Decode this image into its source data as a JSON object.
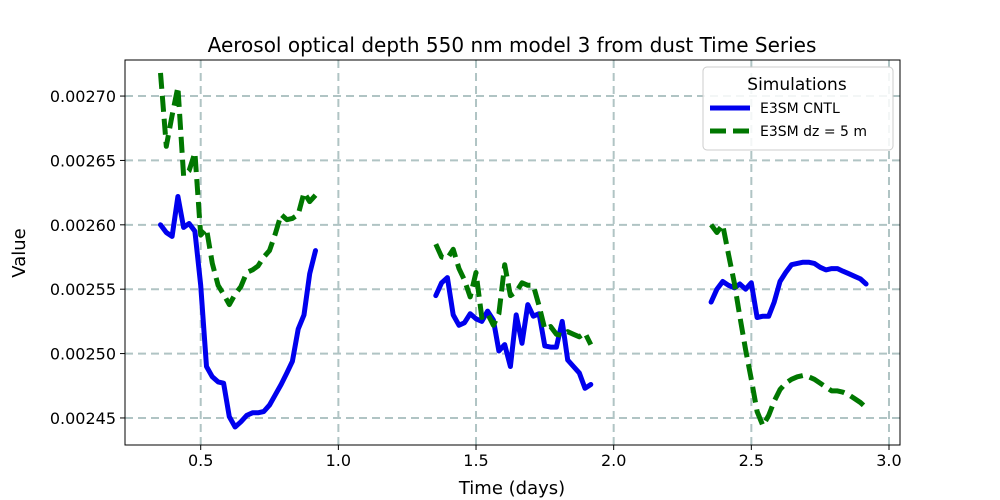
{
  "chart_data": {
    "type": "line",
    "title": "Aerosol optical depth 550 nm model 3 from dust Time Series",
    "xlabel": "Time (days)",
    "ylabel": "Value",
    "xlim": [
      0.225,
      3.04
    ],
    "ylim": [
      0.002429,
      0.002728
    ],
    "x_ticks": [
      0.5,
      1.0,
      1.5,
      2.0,
      2.5,
      3.0
    ],
    "x_tick_labels": [
      "0.5",
      "1.0",
      "1.5",
      "2.0",
      "2.5",
      "3.0"
    ],
    "y_ticks": [
      0.00245,
      0.0025,
      0.00255,
      0.0026,
      0.00265,
      0.0027
    ],
    "y_tick_labels": [
      "0.00245",
      "0.00250",
      "0.00255",
      "0.00260",
      "0.00265",
      "0.00270"
    ],
    "grid": true,
    "legend": {
      "title": "Simulations",
      "position": "top-right"
    },
    "series": [
      {
        "name": "E3SM CNTL",
        "color": "#0000ee",
        "style": "solid",
        "segments": [
          {
            "x": [
              0.354,
              0.375,
              0.396,
              0.417,
              0.438,
              0.458,
              0.479,
              0.5,
              0.521,
              0.542,
              0.563,
              0.583,
              0.604,
              0.625,
              0.646,
              0.667,
              0.688,
              0.708,
              0.729,
              0.75,
              0.771,
              0.792,
              0.813,
              0.833,
              0.854,
              0.875,
              0.896,
              0.917
            ],
            "y": [
              0.0026,
              0.002594,
              0.002591,
              0.002622,
              0.002598,
              0.002601,
              0.002595,
              0.002553,
              0.00249,
              0.002482,
              0.002478,
              0.002477,
              0.002451,
              0.002443,
              0.002447,
              0.002452,
              0.002454,
              0.002454,
              0.002455,
              0.00246,
              0.002468,
              0.002476,
              0.002485,
              0.002494,
              0.002519,
              0.00253,
              0.002562,
              0.00258
            ]
          },
          {
            "x": [
              1.354,
              1.375,
              1.396,
              1.417,
              1.438,
              1.458,
              1.479,
              1.5,
              1.521,
              1.542,
              1.563,
              1.583,
              1.604,
              1.625,
              1.646,
              1.667,
              1.688,
              1.708,
              1.729,
              1.75,
              1.771,
              1.792,
              1.813,
              1.833,
              1.854,
              1.875,
              1.896,
              1.917
            ],
            "y": [
              0.002545,
              0.002555,
              0.002559,
              0.00253,
              0.002522,
              0.002524,
              0.002531,
              0.002527,
              0.002525,
              0.002533,
              0.002526,
              0.002502,
              0.002507,
              0.00249,
              0.00253,
              0.002508,
              0.002538,
              0.002529,
              0.002531,
              0.002506,
              0.002505,
              0.002505,
              0.002525,
              0.002495,
              0.00249,
              0.002485,
              0.002473,
              0.002476
            ]
          },
          {
            "x": [
              2.354,
              2.375,
              2.396,
              2.417,
              2.438,
              2.458,
              2.479,
              2.5,
              2.521,
              2.542,
              2.563,
              2.583,
              2.604,
              2.625,
              2.646,
              2.667,
              2.688,
              2.708,
              2.729,
              2.75,
              2.771,
              2.792,
              2.813,
              2.833,
              2.854,
              2.875,
              2.896,
              2.917
            ],
            "y": [
              0.00254,
              0.00255,
              0.002556,
              0.002553,
              0.002551,
              0.002554,
              0.00255,
              0.002555,
              0.002528,
              0.002529,
              0.002529,
              0.00254,
              0.002556,
              0.002563,
              0.002569,
              0.00257,
              0.002571,
              0.002571,
              0.00257,
              0.002567,
              0.002565,
              0.002566,
              0.002566,
              0.002564,
              0.002562,
              0.00256,
              0.002558,
              0.002554
            ]
          }
        ]
      },
      {
        "name": "E3SM dz = 5 m",
        "color": "#007700",
        "style": "dashed",
        "segments": [
          {
            "x": [
              0.354,
              0.375,
              0.396,
              0.417,
              0.438,
              0.458,
              0.479,
              0.5,
              0.521,
              0.542,
              0.563,
              0.583,
              0.604,
              0.625,
              0.646,
              0.667,
              0.688,
              0.708,
              0.729,
              0.75,
              0.771,
              0.792,
              0.813,
              0.833,
              0.854,
              0.875,
              0.896,
              0.917
            ],
            "y": [
              0.002718,
              0.002661,
              0.002685,
              0.002707,
              0.002638,
              0.002642,
              0.002656,
              0.002592,
              0.002597,
              0.00257,
              0.002553,
              0.002546,
              0.002538,
              0.002546,
              0.002552,
              0.002563,
              0.002565,
              0.002568,
              0.002575,
              0.00258,
              0.002593,
              0.002608,
              0.002604,
              0.002605,
              0.002608,
              0.002625,
              0.002618,
              0.002623
            ]
          },
          {
            "x": [
              1.354,
              1.375,
              1.396,
              1.417,
              1.438,
              1.458,
              1.479,
              1.5,
              1.521,
              1.542,
              1.563,
              1.583,
              1.604,
              1.625,
              1.646,
              1.667,
              1.688,
              1.708,
              1.729,
              1.75,
              1.771,
              1.792,
              1.813,
              1.833,
              1.854,
              1.875,
              1.896,
              1.917
            ],
            "y": [
              0.002585,
              0.002575,
              0.002574,
              0.002581,
              0.002566,
              0.002557,
              0.002544,
              0.002563,
              0.002528,
              0.002531,
              0.002522,
              0.002531,
              0.002569,
              0.002545,
              0.002548,
              0.002555,
              0.002553,
              0.002553,
              0.002537,
              0.002519,
              0.002521,
              0.002515,
              0.002514,
              0.002517,
              0.002515,
              0.002513,
              0.002516,
              0.002507
            ]
          },
          {
            "x": [
              2.354,
              2.375,
              2.396,
              2.417,
              2.438,
              2.458,
              2.479,
              2.5,
              2.521,
              2.542,
              2.563,
              2.583,
              2.604,
              2.625,
              2.646,
              2.667,
              2.688,
              2.708,
              2.729,
              2.75,
              2.771,
              2.792,
              2.813,
              2.833,
              2.854,
              2.875,
              2.896,
              2.917
            ],
            "y": [
              0.0026,
              0.002594,
              0.0026,
              0.002577,
              0.002555,
              0.002529,
              0.002503,
              0.00248,
              0.002455,
              0.002444,
              0.002452,
              0.002463,
              0.002472,
              0.002477,
              0.00248,
              0.002482,
              0.002483,
              0.002482,
              0.00248,
              0.002477,
              0.002474,
              0.002471,
              0.002471,
              0.00247,
              0.002468,
              0.002465,
              0.002462,
              0.002458
            ]
          }
        ]
      }
    ]
  }
}
